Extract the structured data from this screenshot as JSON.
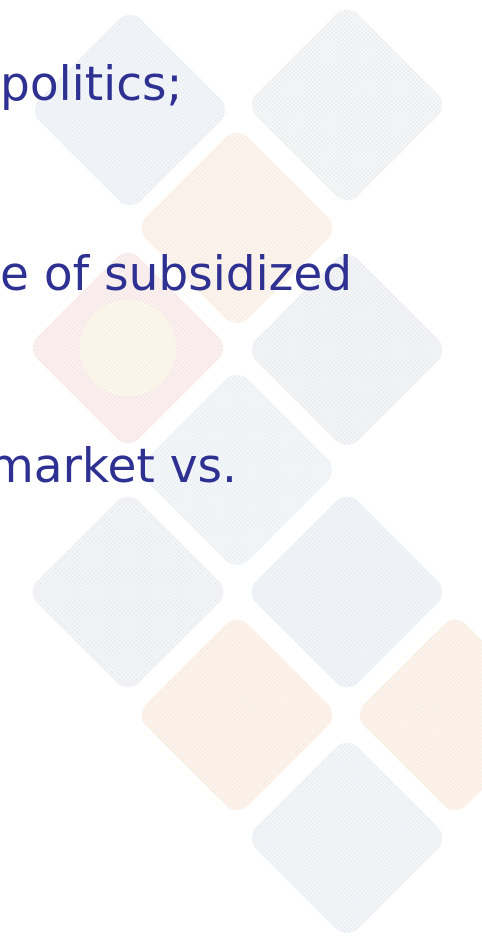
{
  "lines": [
    "politics;",
    "e of subsidized",
    "market vs."
  ]
}
